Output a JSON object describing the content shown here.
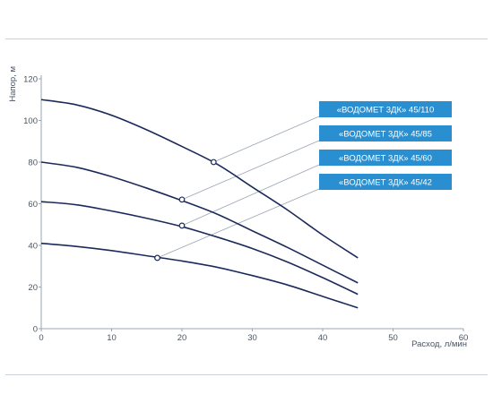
{
  "chart_data": {
    "type": "line",
    "xlabel": "Расход, л/мин",
    "ylabel": "Напор, м",
    "xlim": [
      0,
      60
    ],
    "ylim": [
      0,
      120
    ],
    "x_ticks": [
      "0",
      "10",
      "20",
      "30",
      "40",
      "50",
      "60"
    ],
    "y_ticks": [
      "0",
      "20",
      "40",
      "60",
      "80",
      "100",
      "120"
    ],
    "grid": false,
    "colors": {
      "curve": "#1c2a5a",
      "legend_bg": "#2a8fd0",
      "leader": "#9aa4b2",
      "axis": "#9aa4b2",
      "axis_text": "#4a5563"
    },
    "series": [
      {
        "name": "«ВОДОМЕТ 3ДК» 45/110",
        "x": [
          0,
          5,
          10,
          15,
          20,
          25,
          30,
          35,
          40,
          45
        ],
        "y": [
          110,
          107.5,
          102.5,
          95.5,
          87.5,
          79,
          68,
          57,
          45,
          34
        ],
        "marker": {
          "x": 24.5,
          "y": 80
        }
      },
      {
        "name": "«ВОДОМЕТ 3ДК» 45/85",
        "x": [
          0,
          5,
          10,
          15,
          20,
          25,
          30,
          35,
          40,
          45
        ],
        "y": [
          80,
          77.5,
          73,
          67.5,
          61.5,
          55,
          47,
          39,
          30.5,
          22
        ],
        "marker": {
          "x": 20,
          "y": 62
        }
      },
      {
        "name": "«ВОДОМЕТ 3ДК» 45/60",
        "x": [
          0,
          5,
          10,
          15,
          20,
          25,
          30,
          35,
          40,
          45
        ],
        "y": [
          61,
          59.5,
          56.5,
          53,
          49,
          44,
          38.5,
          32,
          24.5,
          16.5
        ],
        "marker": {
          "x": 20,
          "y": 49.5
        }
      },
      {
        "name": "«ВОДОМЕТ 3ДК» 45/42",
        "x": [
          0,
          5,
          10,
          15,
          20,
          25,
          30,
          35,
          40,
          45
        ],
        "y": [
          41,
          39.5,
          37.5,
          35,
          32.5,
          29.5,
          25.5,
          21,
          15.5,
          10
        ],
        "marker": {
          "x": 16.5,
          "y": 34
        }
      }
    ]
  }
}
